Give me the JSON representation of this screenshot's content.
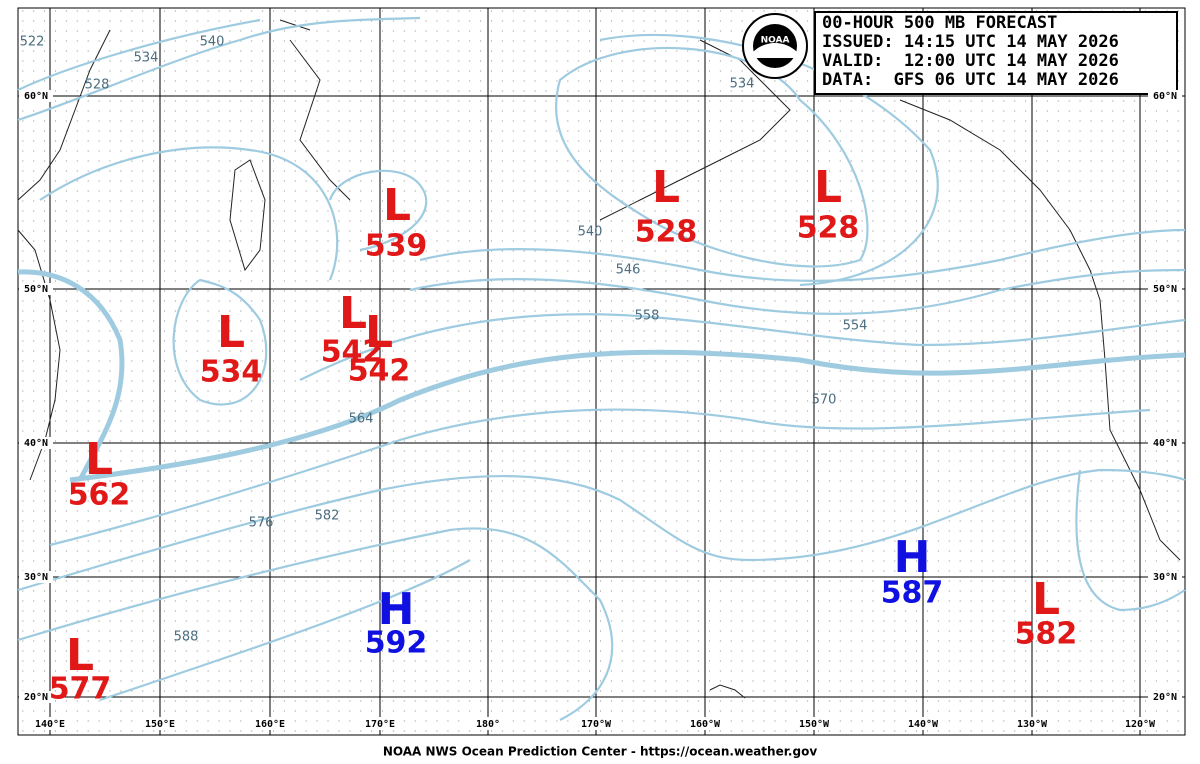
{
  "header": {
    "lines": [
      "00-HOUR 500 MB FORECAST",
      "ISSUED: 14:15 UTC 14 MAY 2026",
      "VALID:  12:00 UTC 14 MAY 2026",
      "DATA:  GFS 06 UTC 14 MAY 2026"
    ]
  },
  "logo": "NOAA",
  "centers": [
    {
      "type": "L",
      "value": 539
    },
    {
      "type": "L",
      "value": 528
    },
    {
      "type": "L",
      "value": 528
    },
    {
      "type": "L",
      "value": 534
    },
    {
      "type": "L",
      "value": 542
    },
    {
      "type": "L",
      "value": 542
    },
    {
      "type": "L",
      "value": 562
    },
    {
      "type": "L",
      "value": 577
    },
    {
      "type": "H",
      "value": 592
    },
    {
      "type": "H",
      "value": 587
    },
    {
      "type": "L",
      "value": 582
    }
  ],
  "contour_labels": [
    522,
    534,
    540,
    528,
    534,
    540,
    546,
    558,
    554,
    570,
    564,
    576,
    582,
    588
  ],
  "latitude_labels": [
    "60°N",
    "50°N",
    "40°N",
    "30°N",
    "20°N"
  ],
  "longitude_labels": [
    "140°E",
    "150°E",
    "160°E",
    "170°E",
    "180°",
    "170°W",
    "160°W",
    "150°W",
    "140°W",
    "130°W",
    "120°W"
  ],
  "footer": "NOAA NWS Ocean Prediction Center - https://ocean.weather.gov"
}
